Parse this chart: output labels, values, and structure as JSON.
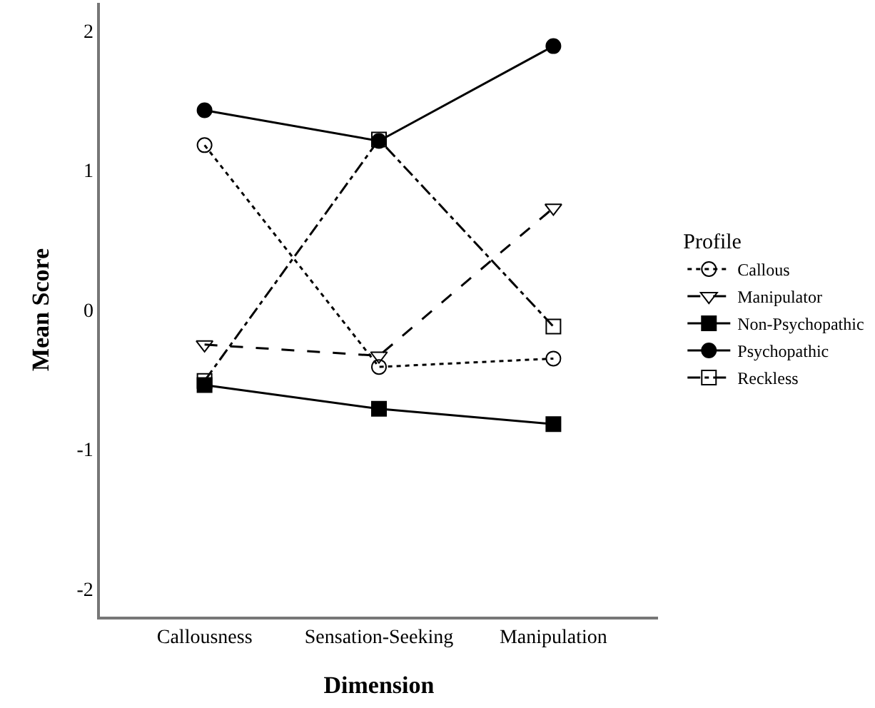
{
  "chart_data": {
    "type": "line",
    "xlabel": "Dimension",
    "ylabel": "Mean Score",
    "legend_title": "Profile",
    "legend": "right",
    "grid": false,
    "categories": [
      "Callousness",
      "Sensation-Seeking",
      "Manipulation"
    ],
    "ylim": [
      -2.2,
      2.2
    ],
    "yticks": [
      -2,
      -1,
      0,
      1,
      2
    ],
    "series": [
      {
        "name": "Callous",
        "color": "#000000",
        "marker": "circle-open",
        "line_style": "dotted",
        "values": [
          1.18,
          -0.41,
          -0.35
        ]
      },
      {
        "name": "Manipulator",
        "color": "#000000",
        "marker": "triangle-down-open",
        "line_style": "dashed",
        "values": [
          -0.25,
          -0.33,
          0.73
        ]
      },
      {
        "name": "Non-Psychopathic",
        "color": "#000000",
        "marker": "square",
        "line_style": "solid",
        "values": [
          -0.54,
          -0.71,
          -0.82
        ]
      },
      {
        "name": "Psychopathic",
        "color": "#000000",
        "marker": "circle",
        "line_style": "solid",
        "values": [
          1.43,
          1.21,
          1.89
        ]
      },
      {
        "name": "Reckless",
        "color": "#000000",
        "marker": "square-open",
        "line_style": "dashdot",
        "values": [
          -0.51,
          1.22,
          -0.12
        ]
      }
    ]
  }
}
